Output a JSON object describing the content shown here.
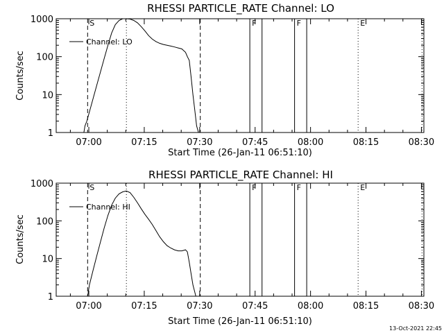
{
  "footer": {
    "timestamp": "13-Oct-2021 22:45"
  },
  "chart_data": [
    {
      "type": "line",
      "title": "RHESSI PARTICLE_RATE Channel: LO",
      "xlabel": "Start Time (26-Jan-11 06:51:10)",
      "ylabel": "Counts/sec",
      "yscale": "log",
      "ylim": [
        1,
        1000
      ],
      "xlim_minutes": [
        0,
        99.5
      ],
      "x_ticks": [
        {
          "t": 8.83,
          "label": "07:00"
        },
        {
          "t": 23.83,
          "label": "07:15"
        },
        {
          "t": 38.83,
          "label": "07:30"
        },
        {
          "t": 53.83,
          "label": "07:45"
        },
        {
          "t": 68.83,
          "label": "08:00"
        },
        {
          "t": 83.83,
          "label": "08:15"
        },
        {
          "t": 98.83,
          "label": "08:30"
        }
      ],
      "y_ticks": [
        {
          "v": 1,
          "label": "1"
        },
        {
          "v": 10,
          "label": "10"
        },
        {
          "v": 100,
          "label": "100"
        },
        {
          "v": 1000,
          "label": "1000"
        }
      ],
      "legend": {
        "label": "Channel: LO",
        "position": "top-left"
      },
      "markers": [
        {
          "t": 8.5,
          "label": "S",
          "style": "dashed"
        },
        {
          "t": 19.0,
          "label": "",
          "style": "dotted"
        },
        {
          "t": 39.0,
          "label": "",
          "style": "dashed"
        },
        {
          "t": 52.4,
          "label": "F",
          "style": "solid"
        },
        {
          "t": 55.7,
          "label": "",
          "style": "solid"
        },
        {
          "t": 64.5,
          "label": "F",
          "style": "solid"
        },
        {
          "t": 67.8,
          "label": "",
          "style": "solid"
        },
        {
          "t": 81.7,
          "label": "E",
          "style": "dotted"
        },
        {
          "t": 99.0,
          "label": "",
          "style": "dotted"
        }
      ],
      "series": [
        {
          "name": "Channel: LO",
          "x": [
            7.5,
            7.8,
            8.3,
            9.0,
            10.0,
            11.0,
            12.0,
            13.0,
            14.0,
            15.0,
            16.0,
            17.0,
            18.0,
            19.0,
            20.0,
            21.0,
            22.0,
            23.0,
            24.0,
            25.0,
            26.0,
            27.0,
            28.0,
            29.0,
            30.0,
            31.0,
            32.0,
            33.0,
            34.0,
            35.0,
            35.5,
            36.0,
            36.5,
            37.0,
            37.5,
            38.0,
            38.5
          ],
          "values": [
            1,
            1.5,
            2.0,
            3.5,
            8,
            18,
            40,
            90,
            200,
            420,
            700,
            900,
            1000,
            1000,
            980,
            900,
            780,
            620,
            480,
            360,
            290,
            250,
            225,
            210,
            200,
            190,
            180,
            170,
            160,
            130,
            100,
            80,
            30,
            10,
            4,
            1.5,
            1
          ]
        }
      ]
    },
    {
      "type": "line",
      "title": "RHESSI PARTICLE_RATE Channel: HI",
      "xlabel": "Start Time (26-Jan-11 06:51:10)",
      "ylabel": "Counts/sec",
      "yscale": "log",
      "ylim": [
        1,
        1000
      ],
      "xlim_minutes": [
        0,
        99.5
      ],
      "x_ticks": [
        {
          "t": 8.83,
          "label": "07:00"
        },
        {
          "t": 23.83,
          "label": "07:15"
        },
        {
          "t": 38.83,
          "label": "07:30"
        },
        {
          "t": 53.83,
          "label": "07:45"
        },
        {
          "t": 68.83,
          "label": "08:00"
        },
        {
          "t": 83.83,
          "label": "08:15"
        },
        {
          "t": 98.83,
          "label": "08:30"
        }
      ],
      "y_ticks": [
        {
          "v": 1,
          "label": "1"
        },
        {
          "v": 10,
          "label": "10"
        },
        {
          "v": 100,
          "label": "100"
        },
        {
          "v": 1000,
          "label": "1000"
        }
      ],
      "legend": {
        "label": "Channel: HI",
        "position": "top-left"
      },
      "markers": [
        {
          "t": 8.5,
          "label": "S",
          "style": "dashed"
        },
        {
          "t": 19.0,
          "label": "",
          "style": "dotted"
        },
        {
          "t": 39.0,
          "label": "",
          "style": "dashed"
        },
        {
          "t": 52.4,
          "label": "F",
          "style": "solid"
        },
        {
          "t": 55.7,
          "label": "",
          "style": "solid"
        },
        {
          "t": 64.5,
          "label": "F",
          "style": "solid"
        },
        {
          "t": 67.8,
          "label": "",
          "style": "solid"
        },
        {
          "t": 81.7,
          "label": "E",
          "style": "dotted"
        },
        {
          "t": 99.0,
          "label": "",
          "style": "dotted"
        }
      ],
      "series": [
        {
          "name": "Channel: HI",
          "x": [
            8.5,
            9.0,
            10.0,
            11.0,
            12.0,
            13.0,
            14.0,
            15.0,
            16.0,
            17.0,
            18.0,
            19.0,
            20.0,
            21.0,
            22.0,
            23.0,
            24.0,
            25.0,
            26.0,
            27.0,
            28.0,
            29.0,
            30.0,
            31.0,
            32.0,
            33.0,
            34.0,
            35.0,
            35.5,
            36.0,
            36.5,
            37.0,
            37.5,
            37.8
          ],
          "values": [
            1,
            2,
            5,
            12,
            28,
            65,
            140,
            260,
            400,
            520,
            590,
            620,
            560,
            420,
            300,
            210,
            150,
            110,
            80,
            55,
            38,
            28,
            22,
            19,
            17,
            16,
            16,
            17,
            15,
            8,
            4,
            2,
            1.3,
            1
          ]
        }
      ]
    }
  ]
}
